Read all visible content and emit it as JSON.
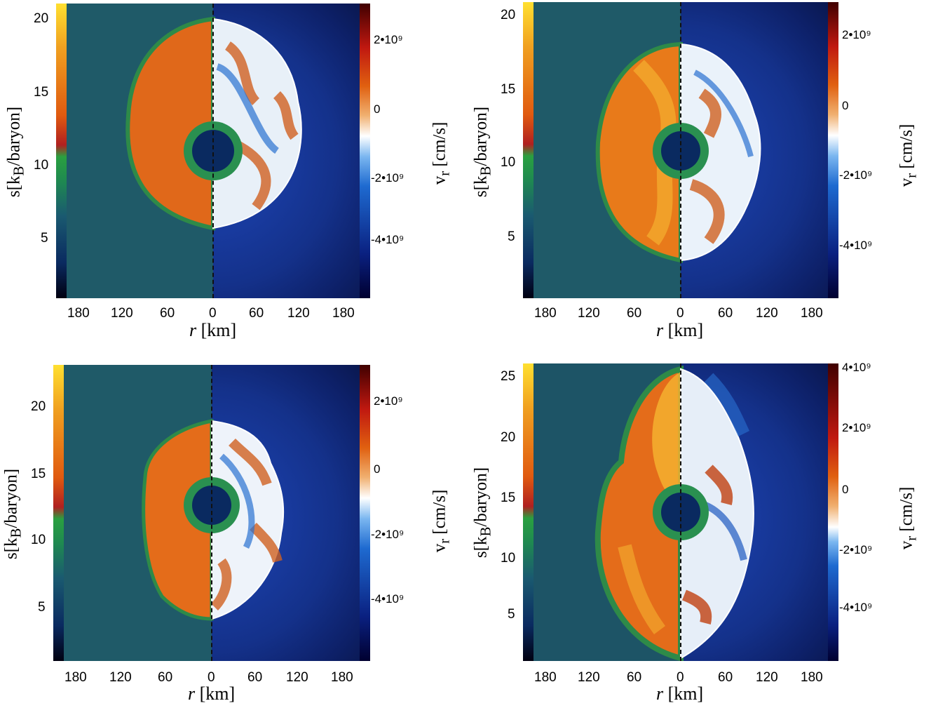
{
  "panels": [
    {
      "left_ticks": [
        "20",
        "15",
        "10",
        "5"
      ],
      "left_label": "s[k",
      "left_label_sub": "B",
      "left_label_rest": "/baryon]",
      "right_ticks": [
        "2•10⁹",
        "0",
        "-2•10⁹",
        "-4•10⁹"
      ],
      "right_label": "v",
      "right_label_sub": "r",
      "right_label_rest": " [cm/s]",
      "x_ticks": [
        "180",
        "120",
        "60",
        "0",
        "60",
        "120",
        "180"
      ],
      "x_label_italic": "r",
      "x_label_rest": " [km]"
    },
    {
      "left_ticks": [
        "20",
        "15",
        "10",
        "5"
      ],
      "left_label": "s[k",
      "left_label_sub": "B",
      "left_label_rest": "/baryon]",
      "right_ticks": [
        "2•10⁹",
        "0",
        "-2•10⁹",
        "-4•10⁹"
      ],
      "right_label": "v",
      "right_label_sub": "r",
      "right_label_rest": " [cm/s]",
      "x_ticks": [
        "180",
        "120",
        "60",
        "0",
        "60",
        "120",
        "180"
      ],
      "x_label_italic": "r",
      "x_label_rest": " [km]"
    },
    {
      "left_ticks": [
        "20",
        "15",
        "10",
        "5"
      ],
      "left_label": "s[k",
      "left_label_sub": "B",
      "left_label_rest": "/baryon]",
      "right_ticks": [
        "2•10⁹",
        "0",
        "-2•10⁹",
        "-4•10⁹"
      ],
      "right_label": "v",
      "right_label_sub": "r",
      "right_label_rest": " [cm/s]",
      "x_ticks": [
        "180",
        "120",
        "60",
        "0",
        "60",
        "120",
        "180"
      ],
      "x_label_italic": "r",
      "x_label_rest": " [km]"
    },
    {
      "left_ticks": [
        "25",
        "20",
        "15",
        "10",
        "5"
      ],
      "left_label": "s[k",
      "left_label_sub": "B",
      "left_label_rest": "/baryon]",
      "right_ticks": [
        "4•10⁹",
        "2•10⁹",
        "0",
        "-2•10⁹",
        "-4•10⁹"
      ],
      "right_label": "v",
      "right_label_sub": "r",
      "right_label_rest": " [cm/s]",
      "x_ticks": [
        "180",
        "120",
        "60",
        "0",
        "60",
        "120",
        "180"
      ],
      "x_label_italic": "r",
      "x_label_rest": " [km]"
    }
  ],
  "colors": {
    "entropy_colorbar": [
      "#000010",
      "#0a2a60",
      "#1a5a70",
      "#1f8a50",
      "#2aa040",
      "#b02020",
      "#e05a10",
      "#f0a020",
      "#ffe030"
    ],
    "velocity_colorbar": [
      "#000030",
      "#0a2080",
      "#1e6ad0",
      "#7ab6f0",
      "#ffffff",
      "#f0b070",
      "#e06010",
      "#c01810",
      "#400000"
    ],
    "background_left": "#1f5a68",
    "background_right": "#183a9e"
  }
}
